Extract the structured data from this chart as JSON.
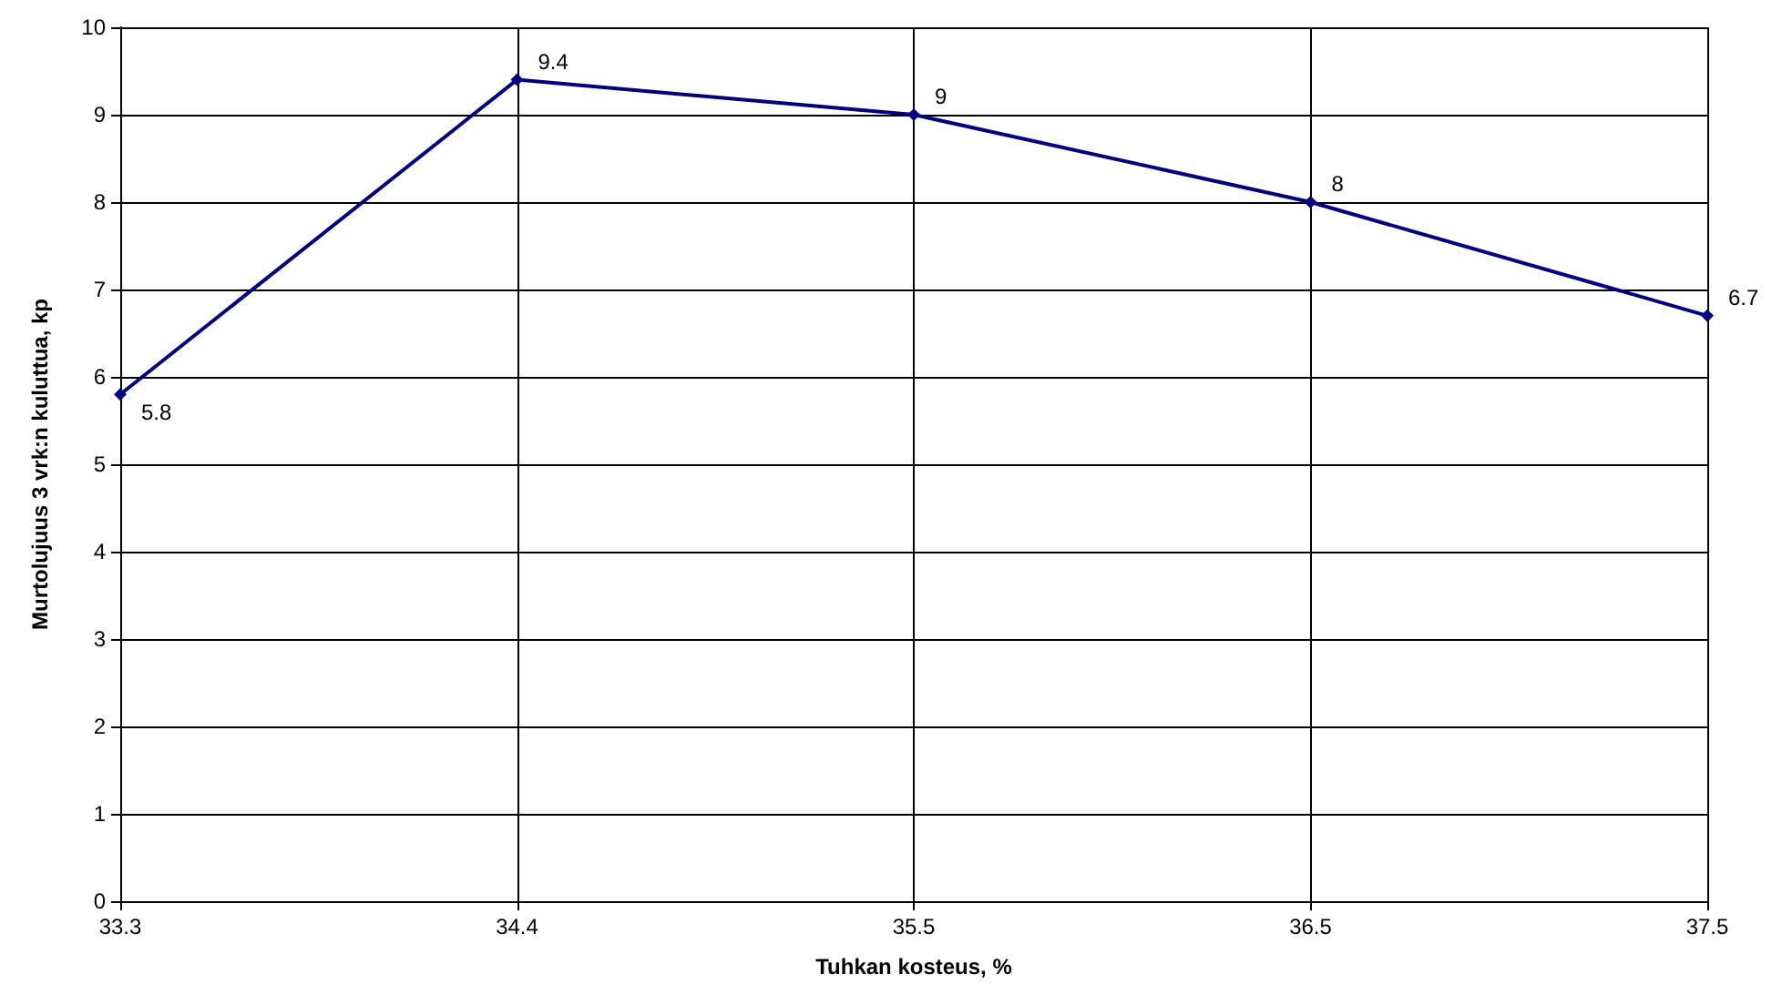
{
  "chart_data": {
    "type": "line",
    "xlabel": "Tuhkan kosteus, %",
    "ylabel": "Murtolujuus 3 vrk:n kuluttua, kp",
    "categories": [
      "33.3",
      "34.4",
      "35.5",
      "36.5",
      "37.5"
    ],
    "series": [
      {
        "color": "#000080",
        "values": [
          5.8,
          9.4,
          9,
          8,
          6.7
        ]
      }
    ],
    "ylim": [
      0,
      10
    ],
    "yticks": [
      0,
      1,
      2,
      3,
      4,
      5,
      6,
      7,
      8,
      9,
      10
    ],
    "grid": true,
    "marker": "diamond",
    "line_style": "solid",
    "data_labels": true
  }
}
